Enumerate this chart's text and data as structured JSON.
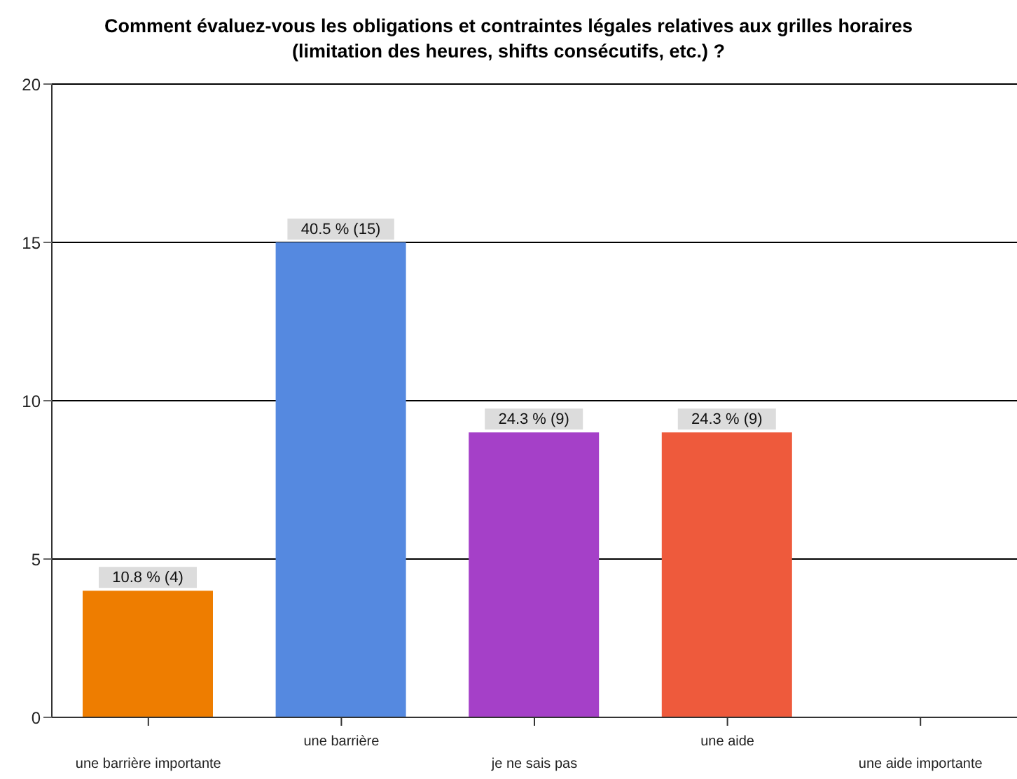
{
  "chart_data": {
    "type": "bar",
    "title": "Comment évaluez-vous les obligations et contraintes légales relatives aux grilles horaires\n(limitation des heures, shifts consécutifs, etc.) ?",
    "categories": [
      "une barrière importante",
      "une barrière",
      "je ne sais pas",
      "une aide",
      "une aide importante"
    ],
    "values": [
      4,
      15,
      9,
      9,
      0
    ],
    "colors": [
      "#ee7d00",
      "#5589e0",
      "#a540c8",
      "#ee5a3c",
      "#888888"
    ],
    "value_labels": [
      "10.8 % (4)",
      "40.5 % (15)",
      "24.3 % (9)",
      "24.3 % (9)",
      null
    ],
    "ylim": [
      0,
      20
    ],
    "yticks": [
      0,
      5,
      10,
      15,
      20
    ],
    "grid": "y"
  }
}
